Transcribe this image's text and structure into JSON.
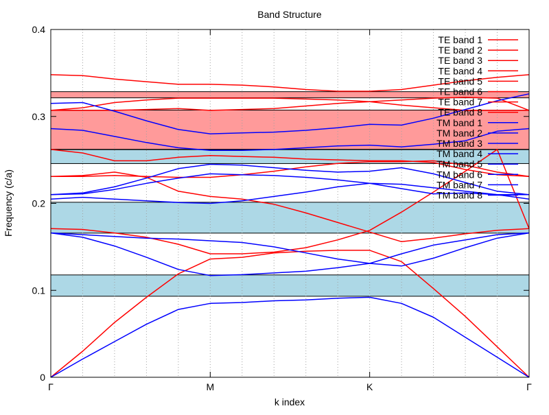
{
  "chart_data": {
    "type": "line",
    "title": "Band Structure",
    "xlabel": "k index",
    "ylabel": "Frequency (c/a)",
    "xlim": [
      0,
      15
    ],
    "ylim": [
      0,
      0.4
    ],
    "grid": {
      "x": true,
      "y": false
    },
    "legend_position": "top-right",
    "x_ticks": [
      {
        "value": 0,
        "label": "Γ"
      },
      {
        "value": 5,
        "label": "M"
      },
      {
        "value": 10,
        "label": "K"
      },
      {
        "value": 15,
        "label": "Γ"
      }
    ],
    "y_ticks": [
      {
        "value": 0,
        "label": "0"
      },
      {
        "value": 0.1,
        "label": "0.1"
      },
      {
        "value": 0.2,
        "label": "0.2"
      },
      {
        "value": 0.3,
        "label": "0.3"
      },
      {
        "value": 0.4,
        "label": "0.4"
      }
    ],
    "colors": {
      "TE": "#ff0000",
      "TM": "#0000ff",
      "TE_gap": "#ff9a9a",
      "TM_gap": "#add8e6"
    },
    "gaps": [
      {
        "kind": "TM",
        "y0": 0.0932,
        "y1": 0.1177
      },
      {
        "kind": "TM",
        "y0": 0.1658,
        "y1": 0.2013
      },
      {
        "kind": "TM",
        "y0": 0.2458,
        "y1": 0.2618
      },
      {
        "kind": "TE",
        "y0": 0.2622,
        "y1": 0.3073
      },
      {
        "kind": "TE",
        "y0": 0.3214,
        "y1": 0.3285
      }
    ],
    "x": [
      0,
      1,
      2,
      3,
      4,
      5,
      6,
      7,
      8,
      9,
      10,
      11,
      12,
      13,
      14,
      15
    ],
    "series": [
      {
        "name": "TE band 1",
        "group": "TE",
        "values": [
          0,
          0.03,
          0.063,
          0.092,
          0.119,
          0.136,
          0.138,
          0.143,
          0.145,
          0.146,
          0.146,
          0.133,
          0.102,
          0.07,
          0.035,
          0
        ]
      },
      {
        "name": "TE band 2",
        "group": "TE",
        "values": [
          0.171,
          0.17,
          0.166,
          0.161,
          0.153,
          0.142,
          0.142,
          0.144,
          0.149,
          0.158,
          0.169,
          0.19,
          0.213,
          0.237,
          0.262,
          0.171
        ]
      },
      {
        "name": "TE band 3",
        "group": "TE",
        "values": [
          0.231,
          0.232,
          0.236,
          0.23,
          0.214,
          0.208,
          0.205,
          0.199,
          0.189,
          0.178,
          0.167,
          0.156,
          0.16,
          0.165,
          0.169,
          0.171
        ]
      },
      {
        "name": "TE band 4",
        "group": "TE",
        "values": [
          0.231,
          0.231,
          0.232,
          0.231,
          0.23,
          0.23,
          0.233,
          0.237,
          0.242,
          0.246,
          0.248,
          0.248,
          0.249,
          0.244,
          0.236,
          0.231
        ]
      },
      {
        "name": "TE band 5",
        "group": "TE",
        "values": [
          0.262,
          0.258,
          0.249,
          0.249,
          0.253,
          0.255,
          0.254,
          0.253,
          0.251,
          0.25,
          0.249,
          0.249,
          0.247,
          0.239,
          0.233,
          0.231
        ]
      },
      {
        "name": "TE band 6",
        "group": "TE",
        "values": [
          0.307,
          0.307,
          0.307,
          0.308,
          0.309,
          0.307,
          0.308,
          0.309,
          0.312,
          0.315,
          0.317,
          0.319,
          0.321,
          0.322,
          0.321,
          0.307
        ]
      },
      {
        "name": "TE band 7",
        "group": "TE",
        "values": [
          0.307,
          0.31,
          0.316,
          0.319,
          0.321,
          0.321,
          0.321,
          0.321,
          0.32,
          0.319,
          0.317,
          0.313,
          0.31,
          0.307,
          0.307,
          0.307
        ]
      },
      {
        "name": "TE band 8",
        "group": "TE",
        "values": [
          0.348,
          0.347,
          0.343,
          0.34,
          0.337,
          0.337,
          0.336,
          0.334,
          0.331,
          0.329,
          0.329,
          0.331,
          0.336,
          0.341,
          0.345,
          0.348
        ]
      },
      {
        "name": "TM band 1",
        "group": "TM",
        "values": [
          0,
          0.021,
          0.041,
          0.061,
          0.078,
          0.085,
          0.086,
          0.088,
          0.089,
          0.091,
          0.092,
          0.085,
          0.069,
          0.046,
          0.023,
          0
        ]
      },
      {
        "name": "TM band 2",
        "group": "TM",
        "values": [
          0.166,
          0.161,
          0.151,
          0.138,
          0.124,
          0.117,
          0.118,
          0.12,
          0.122,
          0.126,
          0.131,
          0.142,
          0.152,
          0.158,
          0.164,
          0.166
        ]
      },
      {
        "name": "TM band 3",
        "group": "TM",
        "values": [
          0.166,
          0.164,
          0.162,
          0.16,
          0.159,
          0.157,
          0.155,
          0.15,
          0.143,
          0.136,
          0.131,
          0.128,
          0.137,
          0.149,
          0.16,
          0.166
        ]
      },
      {
        "name": "TM band 4",
        "group": "TM",
        "values": [
          0.205,
          0.207,
          0.205,
          0.203,
          0.201,
          0.2,
          0.203,
          0.208,
          0.213,
          0.219,
          0.223,
          0.217,
          0.211,
          0.212,
          0.21,
          0.205
        ]
      },
      {
        "name": "TM band 5",
        "group": "TM",
        "values": [
          0.21,
          0.212,
          0.219,
          0.229,
          0.24,
          0.245,
          0.244,
          0.241,
          0.238,
          0.236,
          0.237,
          0.241,
          0.234,
          0.224,
          0.214,
          0.21
        ]
      },
      {
        "name": "TM band 6",
        "group": "TM",
        "values": [
          0.21,
          0.211,
          0.216,
          0.223,
          0.229,
          0.234,
          0.233,
          0.232,
          0.23,
          0.227,
          0.223,
          0.222,
          0.218,
          0.214,
          0.21,
          0.21
        ]
      },
      {
        "name": "TM band 7",
        "group": "TM",
        "values": [
          0.286,
          0.284,
          0.277,
          0.27,
          0.264,
          0.261,
          0.261,
          0.262,
          0.264,
          0.266,
          0.267,
          0.265,
          0.268,
          0.272,
          0.283,
          0.286
        ]
      },
      {
        "name": "TM band 8",
        "group": "TM",
        "values": [
          0.315,
          0.316,
          0.306,
          0.295,
          0.285,
          0.28,
          0.281,
          0.282,
          0.284,
          0.287,
          0.291,
          0.29,
          0.298,
          0.308,
          0.318,
          0.326
        ]
      }
    ]
  }
}
